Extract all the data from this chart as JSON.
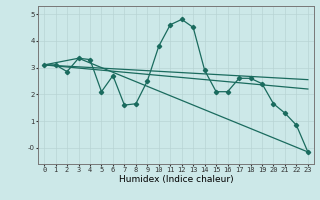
{
  "xlabel": "Humidex (Indice chaleur)",
  "background_color": "#cce8e8",
  "grid_color": "#b8d4d4",
  "line_color": "#1a6b5e",
  "xlim": [
    -0.5,
    23.5
  ],
  "ylim": [
    -0.6,
    5.3
  ],
  "yticks": [
    0,
    1,
    2,
    3,
    4,
    5
  ],
  "ytick_labels": [
    "-0",
    "1",
    "2",
    "3",
    "4",
    "5"
  ],
  "xticks": [
    0,
    1,
    2,
    3,
    4,
    5,
    6,
    7,
    8,
    9,
    10,
    11,
    12,
    13,
    14,
    15,
    16,
    17,
    18,
    19,
    20,
    21,
    22,
    23
  ],
  "series": [
    {
      "x": [
        0,
        1,
        2,
        3,
        4,
        5,
        6,
        7,
        8,
        9,
        10,
        11,
        12,
        13,
        14,
        15,
        16,
        17,
        18,
        19,
        20,
        21,
        22,
        23
      ],
      "y": [
        3.1,
        3.1,
        2.85,
        3.35,
        3.3,
        2.1,
        2.7,
        1.6,
        1.65,
        2.5,
        3.8,
        4.6,
        4.8,
        4.5,
        2.9,
        2.1,
        2.1,
        2.6,
        2.6,
        2.4,
        1.65,
        1.3,
        0.85,
        -0.15
      ],
      "marker": "D",
      "markersize": 2.2,
      "linewidth": 0.9,
      "has_marker": true
    },
    {
      "x": [
        0,
        3,
        23
      ],
      "y": [
        3.1,
        3.35,
        -0.15
      ],
      "marker": null,
      "markersize": 0,
      "linewidth": 0.9,
      "has_marker": false
    },
    {
      "x": [
        0,
        23
      ],
      "y": [
        3.1,
        2.55
      ],
      "marker": null,
      "markersize": 0,
      "linewidth": 0.9,
      "has_marker": false
    },
    {
      "x": [
        0,
        23
      ],
      "y": [
        3.1,
        2.2
      ],
      "marker": null,
      "markersize": 0,
      "linewidth": 0.9,
      "has_marker": false
    }
  ]
}
